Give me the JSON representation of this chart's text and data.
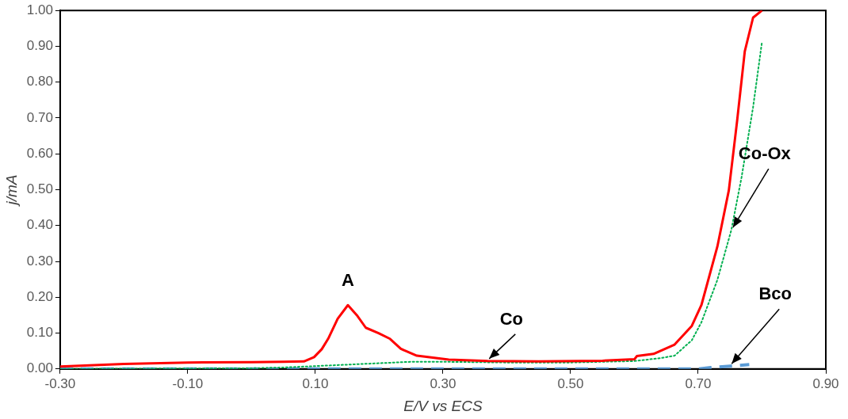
{
  "chart_data": {
    "type": "line",
    "xlabel": "E/V vs ECS",
    "ylabel": "j/mA",
    "xlim": [
      -0.3,
      0.9
    ],
    "xticks": [
      {
        "value": -0.3,
        "label": "-0.30"
      },
      {
        "value": -0.1,
        "label": "-0.10"
      },
      {
        "value": 0.1,
        "label": "0.10"
      },
      {
        "value": 0.3,
        "label": "0.30"
      },
      {
        "value": 0.5,
        "label": "0.50"
      },
      {
        "value": 0.7,
        "label": "0.70"
      },
      {
        "value": 0.9,
        "label": "0.90"
      }
    ],
    "ylim": [
      0,
      1
    ],
    "yticks": [
      {
        "value": 0,
        "label": "0.00"
      },
      {
        "value": 0.1,
        "label": "0.10"
      },
      {
        "value": 0.2,
        "label": "0.20"
      },
      {
        "value": 0.3,
        "label": "0.30"
      },
      {
        "value": 0.4,
        "label": "0.40"
      },
      {
        "value": 0.5,
        "label": "0.50"
      },
      {
        "value": 0.6,
        "label": "0.60"
      },
      {
        "value": 0.7,
        "label": "0.70"
      },
      {
        "value": 0.8,
        "label": "0.80"
      },
      {
        "value": 0.9,
        "label": "0.90"
      },
      {
        "value": 1,
        "label": "1.00"
      }
    ],
    "grid": false,
    "legend": false,
    "marker": "none",
    "annotations": [
      {
        "text": "A",
        "x": 0.151,
        "y": 0.178
      }
    ],
    "series": [
      {
        "name": "Co",
        "color": "#ff0000",
        "line_style": "solid",
        "x": [
          -0.3,
          -0.2,
          -0.1,
          0.0,
          0.05,
          0.082,
          0.098,
          0.11,
          0.12,
          0.135,
          0.151,
          0.165,
          0.179,
          0.199,
          0.217,
          0.234,
          0.259,
          0.309,
          0.37,
          0.45,
          0.55,
          0.6,
          0.604,
          0.63,
          0.663,
          0.69,
          0.705,
          0.73,
          0.748,
          0.761,
          0.773,
          0.786,
          0.8
        ],
        "values": [
          0.007,
          0.014,
          0.018,
          0.019,
          0.02,
          0.021,
          0.033,
          0.055,
          0.084,
          0.14,
          0.178,
          0.15,
          0.115,
          0.1,
          0.084,
          0.056,
          0.037,
          0.026,
          0.022,
          0.021,
          0.023,
          0.027,
          0.036,
          0.042,
          0.068,
          0.12,
          0.178,
          0.341,
          0.498,
          0.692,
          0.886,
          0.98,
          1.0
        ]
      },
      {
        "name": "Co-Ox",
        "color": "#00b050",
        "line_style": "dotted",
        "x": [
          -0.3,
          0.0,
          0.05,
          0.1,
          0.15,
          0.2,
          0.25,
          0.3,
          0.4,
          0.5,
          0.6,
          0.64,
          0.663,
          0.69,
          0.705,
          0.73,
          0.752,
          0.768,
          0.786,
          0.8
        ],
        "values": [
          0,
          0.002,
          0.004,
          0.008,
          0.012,
          0.016,
          0.02,
          0.02,
          0.018,
          0.018,
          0.022,
          0.03,
          0.037,
          0.08,
          0.13,
          0.248,
          0.388,
          0.535,
          0.73,
          0.913
        ]
      },
      {
        "name": "Bco",
        "color": "#5b9bd5",
        "line_style": "dashed",
        "x": [
          -0.3,
          0.7,
          0.72,
          0.75,
          0.78
        ],
        "values": [
          0,
          0,
          0.004,
          0.008,
          0.012
        ]
      }
    ]
  }
}
